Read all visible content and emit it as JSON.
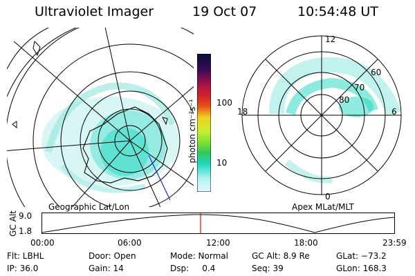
{
  "header": {
    "instrument": "Ultraviolet Imager",
    "date": "19 Oct 07",
    "time": "10:54:48 UT"
  },
  "colorbar": {
    "unit_label": "photon cm⁻²s⁻¹",
    "ticks": [
      "100",
      "10"
    ],
    "colors": [
      "#0b0f3a",
      "#3a0a5a",
      "#7a0a5a",
      "#a8104a",
      "#d0202a",
      "#e85018",
      "#f0901a",
      "#f0d020",
      "#c8f030",
      "#80e030",
      "#30c860",
      "#20d8c0",
      "#60e8e8",
      "#b0f0f0",
      "#e0f8f8"
    ]
  },
  "left_map": {
    "caption": "Geographic Lat/Lon",
    "dominant_color": "#20d8c0"
  },
  "right_map": {
    "caption": "Apex MLat/MLT",
    "mlt_labels": {
      "top": "12",
      "right": "6",
      "bottom": "0",
      "left": "18"
    },
    "lat_labels": [
      "60",
      "70",
      "80"
    ]
  },
  "orbit": {
    "ylabel": "GC Alt",
    "y_ticks": [
      "9.0",
      "1.8"
    ],
    "x_ticks": [
      "00:00",
      "06:00",
      "12:00",
      "18:00",
      "23:59"
    ],
    "current_time_marker": "10:54:48",
    "marker_color": "#ff0000"
  },
  "info": {
    "flt": "Flt: LBHL",
    "ip": "IP: 36.0",
    "door": "Door: Open",
    "gain": "Gain: 14",
    "mode": "Mode: Normal",
    "dsp": "Dsp:     0.4",
    "gcalt": "GC Alt: 8.9 Re",
    "seq": "Seq: 39",
    "glat": "GLat: −73.2",
    "glon": "GLon: 168.3"
  }
}
